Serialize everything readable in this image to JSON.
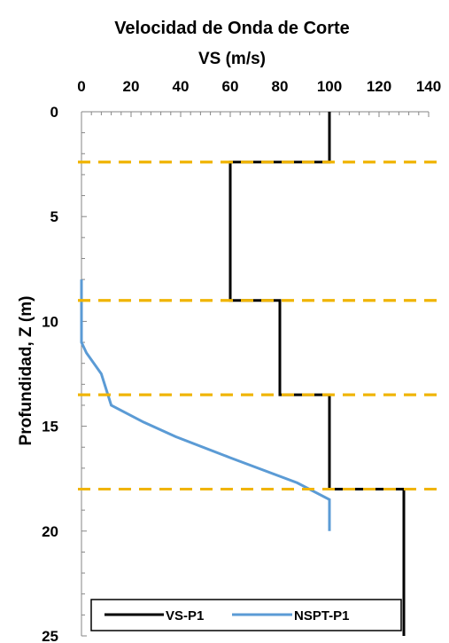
{
  "chart_data": {
    "type": "line",
    "title": "Velocidad de Onda de Corte",
    "xlabel": "VS (m/s)",
    "ylabel": "Profundidad, Z (m)",
    "xlim": [
      0,
      140
    ],
    "ylim": [
      0,
      25
    ],
    "y_inverted": true,
    "x_axis_position": "top",
    "x_ticks": [
      "0",
      "20",
      "40",
      "60",
      "80",
      "100",
      "120",
      "140"
    ],
    "y_ticks": [
      "0",
      "5",
      "10",
      "15",
      "20",
      "25"
    ],
    "grid": false,
    "legend_position": "bottom",
    "series": [
      {
        "name": "VS-P1",
        "color": "#000000",
        "x": [
          100,
          100,
          60,
          60,
          80,
          80,
          100,
          100,
          130,
          130
        ],
        "y": [
          0,
          2.4,
          2.4,
          9.0,
          9.0,
          13.5,
          13.5,
          18.0,
          18.0,
          25.0
        ]
      },
      {
        "name": "NSPT-P1",
        "color": "#5b9bd5",
        "x": [
          0,
          0,
          0,
          2,
          8,
          12,
          25,
          38,
          60,
          87,
          100,
          100
        ],
        "y": [
          8.0,
          9.5,
          11.0,
          11.5,
          12.5,
          14.0,
          14.8,
          15.5,
          16.5,
          17.7,
          18.5,
          20.0
        ]
      },
      {
        "color": "#f0b400",
        "dashed": true,
        "layers": [
          2.4,
          9.0,
          13.5,
          18.0
        ]
      }
    ]
  }
}
